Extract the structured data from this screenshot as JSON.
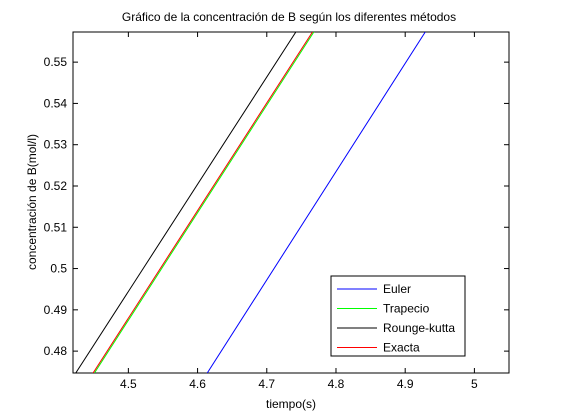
{
  "chart_data": {
    "type": "line",
    "title": "Gráfico de la concentración de B según los diferentes métodos",
    "xlabel": "tiempo(s)",
    "ylabel": "concentración de B(mol/l)",
    "xlim": [
      4.42,
      5.05
    ],
    "ylim": [
      0.4747,
      0.5573
    ],
    "xticks": [
      4.5,
      4.6,
      4.7,
      4.8,
      4.9,
      5
    ],
    "xtick_labels": [
      "4.5",
      "4.6",
      "4.7",
      "4.8",
      "4.9",
      "5"
    ],
    "yticks": [
      0.48,
      0.49,
      0.5,
      0.51,
      0.52,
      0.53,
      0.54,
      0.55
    ],
    "ytick_labels": [
      "0.48",
      "0.49",
      "0.5",
      "0.51",
      "0.52",
      "0.53",
      "0.54",
      "0.55"
    ],
    "grid": false,
    "legend_position": "bottom-right",
    "series": [
      {
        "name": "Euler",
        "color": "#0000ff",
        "x": [
          4.614,
          4.929
        ],
        "y": [
          0.4747,
          0.5573
        ]
      },
      {
        "name": "Trapecio",
        "color": "#00ff00",
        "x": [
          4.451,
          4.768
        ],
        "y": [
          0.4747,
          0.5573
        ]
      },
      {
        "name": "Rounge-kutta",
        "color": "#000000",
        "x": [
          4.424,
          4.742
        ],
        "y": [
          0.4747,
          0.5573
        ]
      },
      {
        "name": "Exacta",
        "color": "#ff0000",
        "x": [
          4.449,
          4.766
        ],
        "y": [
          0.4747,
          0.5573
        ]
      }
    ]
  }
}
